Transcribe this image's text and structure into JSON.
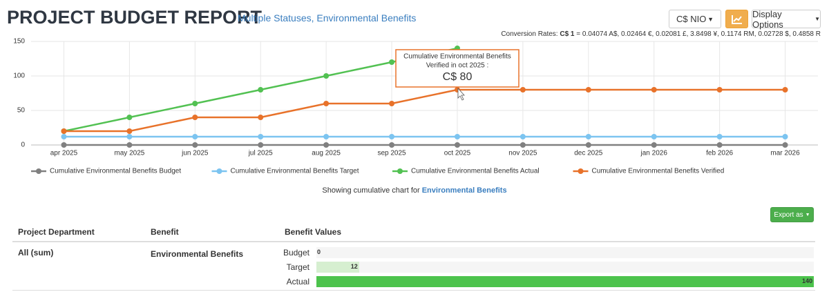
{
  "header": {
    "title": "PROJECT BUDGET REPORT",
    "subtitle": "Multiple Statuses, Environmental Benefits",
    "currency": "C$ NIO",
    "display_options": "Display Options",
    "conversion": {
      "label": "Conversion Rates:",
      "base": "C$ 1",
      "rates": "= 0.04074 A$, 0.02464 €, 0.02081 £, 3.8498 ¥, 0.1174 RM, 0.02728 $, 0.4858 R"
    }
  },
  "chart_data": {
    "type": "line",
    "categories": [
      "apr 2025",
      "may 2025",
      "jun 2025",
      "jul 2025",
      "aug 2025",
      "sep 2025",
      "oct 2025",
      "nov 2025",
      "dec 2025",
      "jan 2026",
      "feb 2026",
      "mar 2026"
    ],
    "series": [
      {
        "name": "Cumulative Environmental Benefits Budget",
        "color": "#808080",
        "values": [
          0,
          0,
          0,
          0,
          0,
          0,
          0,
          0,
          0,
          0,
          0,
          0
        ]
      },
      {
        "name": "Cumulative Environmental Benefits Target",
        "color": "#7cc4f0",
        "values": [
          12,
          12,
          12,
          12,
          12,
          12,
          12,
          12,
          12,
          12,
          12,
          12
        ]
      },
      {
        "name": "Cumulative Environmental Benefits Actual",
        "color": "#52c152",
        "values": [
          20,
          40,
          60,
          80,
          100,
          120,
          140,
          null,
          null,
          null,
          null,
          null
        ]
      },
      {
        "name": "Cumulative Environmental Benefits Verified",
        "color": "#e8722a",
        "values": [
          20,
          20,
          40,
          40,
          60,
          60,
          80,
          80,
          80,
          80,
          80,
          80
        ]
      }
    ],
    "ylim": [
      0,
      150
    ],
    "yticks": [
      0,
      50,
      100,
      150
    ],
    "grid": true,
    "tooltip": {
      "title": "Cumulative Environmental Benefits",
      "subtitle": "Verified in oct 2025 :",
      "value": "C$ 80"
    }
  },
  "caption": {
    "text": "Showing cumulative chart for",
    "highlight": "Environmental Benefits"
  },
  "export": "Export as",
  "table": {
    "headers": [
      "Project Department",
      "Benefit",
      "Benefit Values"
    ],
    "row": {
      "department": "All (sum)",
      "benefit": "Environmental Benefits",
      "bars": [
        {
          "name": "Budget",
          "value": 0,
          "color": "#d6efd0"
        },
        {
          "name": "Target",
          "value": 12,
          "color": "#d6efd0"
        },
        {
          "name": "Actual",
          "value": 140,
          "color": "#4cc34c"
        }
      ]
    }
  }
}
